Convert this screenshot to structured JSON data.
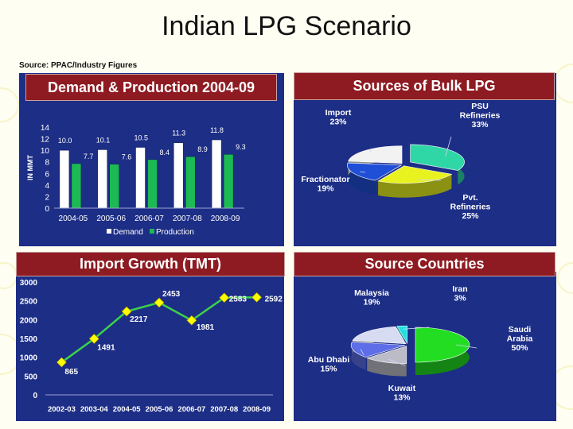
{
  "title": "Indian LPG Scenario",
  "source": "Source: PPAC/Industry Figures",
  "colors": {
    "panel": "#1d2e86",
    "banner": "#8e1b22",
    "demand": "#ffffff",
    "production": "#1db954",
    "line": "#3bd14a",
    "marker": "#ffff00"
  },
  "chart_data": [
    {
      "type": "bar",
      "title": "Demand & Production 2004-09",
      "ylabel": "IN MMT",
      "categories": [
        "2004-05",
        "2005-06",
        "2006-07",
        "2007-08",
        "2008-09"
      ],
      "series": [
        {
          "name": "Demand",
          "values": [
            10.0,
            10.1,
            10.5,
            11.3,
            11.8
          ],
          "labels": [
            "10.0",
            "10.1",
            "10.5",
            "11.3",
            "11.8"
          ]
        },
        {
          "name": "Production",
          "values": [
            7.7,
            7.6,
            8.4,
            8.9,
            9.3
          ],
          "labels": [
            "7.7",
            "7.6",
            "8.4",
            "8.9",
            "9.3"
          ]
        }
      ],
      "ylim": [
        0,
        14
      ],
      "yticks": [
        "0",
        "2",
        "4",
        "6",
        "8",
        "10",
        "12",
        "14"
      ]
    },
    {
      "type": "pie",
      "title": "Sources of Bulk LPG",
      "slices": [
        {
          "name": "PSU Refineries",
          "value": 33,
          "label_lines": [
            "PSU",
            "Refineries",
            "33%"
          ],
          "color": "#2fd6a6"
        },
        {
          "name": "Pvt. Refineries",
          "value": 25,
          "label_lines": [
            "Pvt.",
            "Refineries",
            "25%"
          ],
          "color": "#e8f21e"
        },
        {
          "name": "Fractionator",
          "value": 19,
          "label_lines": [
            "Fractionator",
            "19%"
          ],
          "color": "#1f4fd6"
        },
        {
          "name": "Import",
          "value": 23,
          "label_lines": [
            "Import",
            "23%"
          ],
          "color": "#f2f2f2"
        }
      ]
    },
    {
      "type": "line",
      "title": "Import Growth (TMT)",
      "categories": [
        "2002-03",
        "2003-04",
        "2004-05",
        "2005-06",
        "2006-07",
        "2007-08",
        "2008-09"
      ],
      "values": [
        865,
        1491,
        2217,
        2453,
        1981,
        2583,
        2592
      ],
      "labels": [
        "865",
        "1491",
        "2217",
        "2453",
        "1981",
        "2583",
        "2592"
      ],
      "ylim": [
        0,
        3000
      ],
      "yticks": [
        "0",
        "500",
        "1000",
        "1500",
        "2000",
        "2500",
        "3000"
      ]
    },
    {
      "type": "pie",
      "title": "Source Countries",
      "slices": [
        {
          "name": "Saudi Arabia",
          "value": 50,
          "label_lines": [
            "Saudi",
            "Arabia",
            "50%"
          ],
          "color": "#22dd22"
        },
        {
          "name": "Kuwait",
          "value": 13,
          "label_lines": [
            "Kuwait",
            "13%"
          ],
          "color": "#bcbcc8"
        },
        {
          "name": "Abu Dhabi",
          "value": 15,
          "label_lines": [
            "Abu Dhabi",
            "15%"
          ],
          "color": "#5d6ee8"
        },
        {
          "name": "Malaysia",
          "value": 19,
          "label_lines": [
            "Malaysia",
            "19%"
          ],
          "color": "#d8dcf2"
        },
        {
          "name": "Iran",
          "value": 3,
          "label_lines": [
            "Iran",
            "3%"
          ],
          "color": "#1fe0e0"
        }
      ]
    }
  ]
}
